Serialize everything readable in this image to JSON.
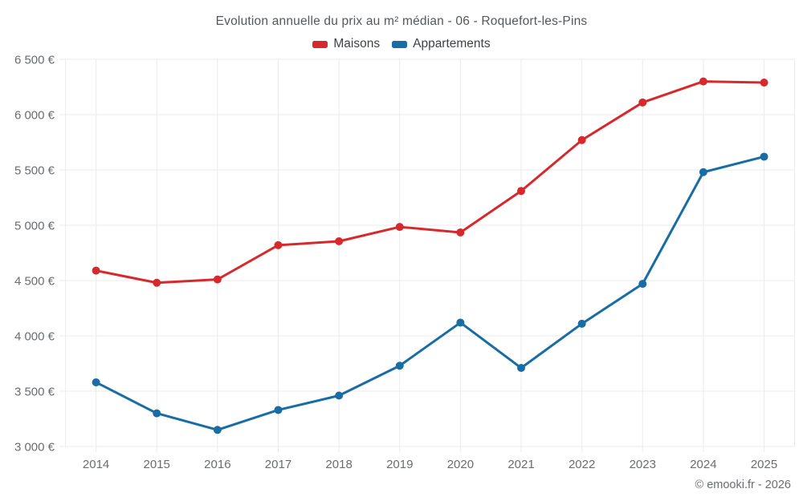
{
  "chart": {
    "title": "Evolution annuelle du prix au m² médian - 06 - Roquefort-les-Pins",
    "footer": "© emooki.fr - 2026",
    "legend": [
      {
        "label": "Maisons",
        "color": "#d7282c"
      },
      {
        "label": "Appartements",
        "color": "#176da4"
      }
    ]
  },
  "chart_data": {
    "type": "line",
    "title": "Evolution annuelle du prix au m² médian - 06 - Roquefort-les-Pins",
    "xlabel": "",
    "ylabel": "",
    "categories": [
      "2014",
      "2015",
      "2016",
      "2017",
      "2018",
      "2019",
      "2020",
      "2021",
      "2022",
      "2023",
      "2024",
      "2025"
    ],
    "series": [
      {
        "name": "Maisons",
        "color": "#d7282c",
        "values": [
          4590,
          4480,
          4510,
          4820,
          4855,
          4985,
          4935,
          5310,
          5770,
          6110,
          6300,
          6290
        ]
      },
      {
        "name": "Appartements",
        "color": "#176da4",
        "values": [
          3580,
          3300,
          3150,
          3330,
          3460,
          3730,
          4120,
          3710,
          4110,
          4470,
          5480,
          5620
        ]
      }
    ],
    "ylim": [
      3000,
      6500
    ],
    "y_ticks": [
      {
        "value": 6500,
        "label": "6 500 €"
      },
      {
        "value": 6000,
        "label": "6 000 €"
      },
      {
        "value": 5500,
        "label": "5 500 €"
      },
      {
        "value": 5000,
        "label": "5 000 €"
      },
      {
        "value": 4500,
        "label": "4 500 €"
      },
      {
        "value": 4000,
        "label": "4 000 €"
      },
      {
        "value": 3500,
        "label": "3 500 €"
      },
      {
        "value": 3000,
        "label": "3 000 €"
      }
    ],
    "grid": true,
    "grid_color": "#ebebec",
    "tick_text_color": "#696d70",
    "legend_position": "top"
  }
}
